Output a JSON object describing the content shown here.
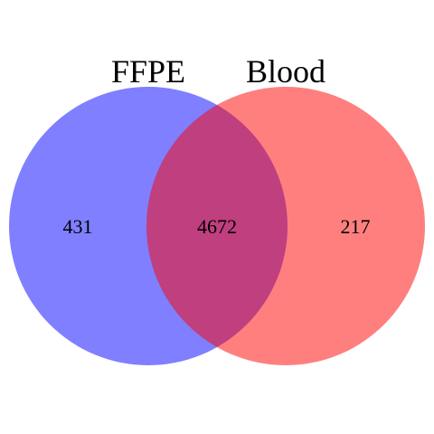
{
  "venn": {
    "sets": [
      {
        "name": "FFPE",
        "color": "#0000ff",
        "only_count": "431"
      },
      {
        "name": "Blood",
        "color": "#ff0000",
        "only_count": "217"
      }
    ],
    "intersection_count": "4672",
    "fill_opacity": 0.5
  }
}
